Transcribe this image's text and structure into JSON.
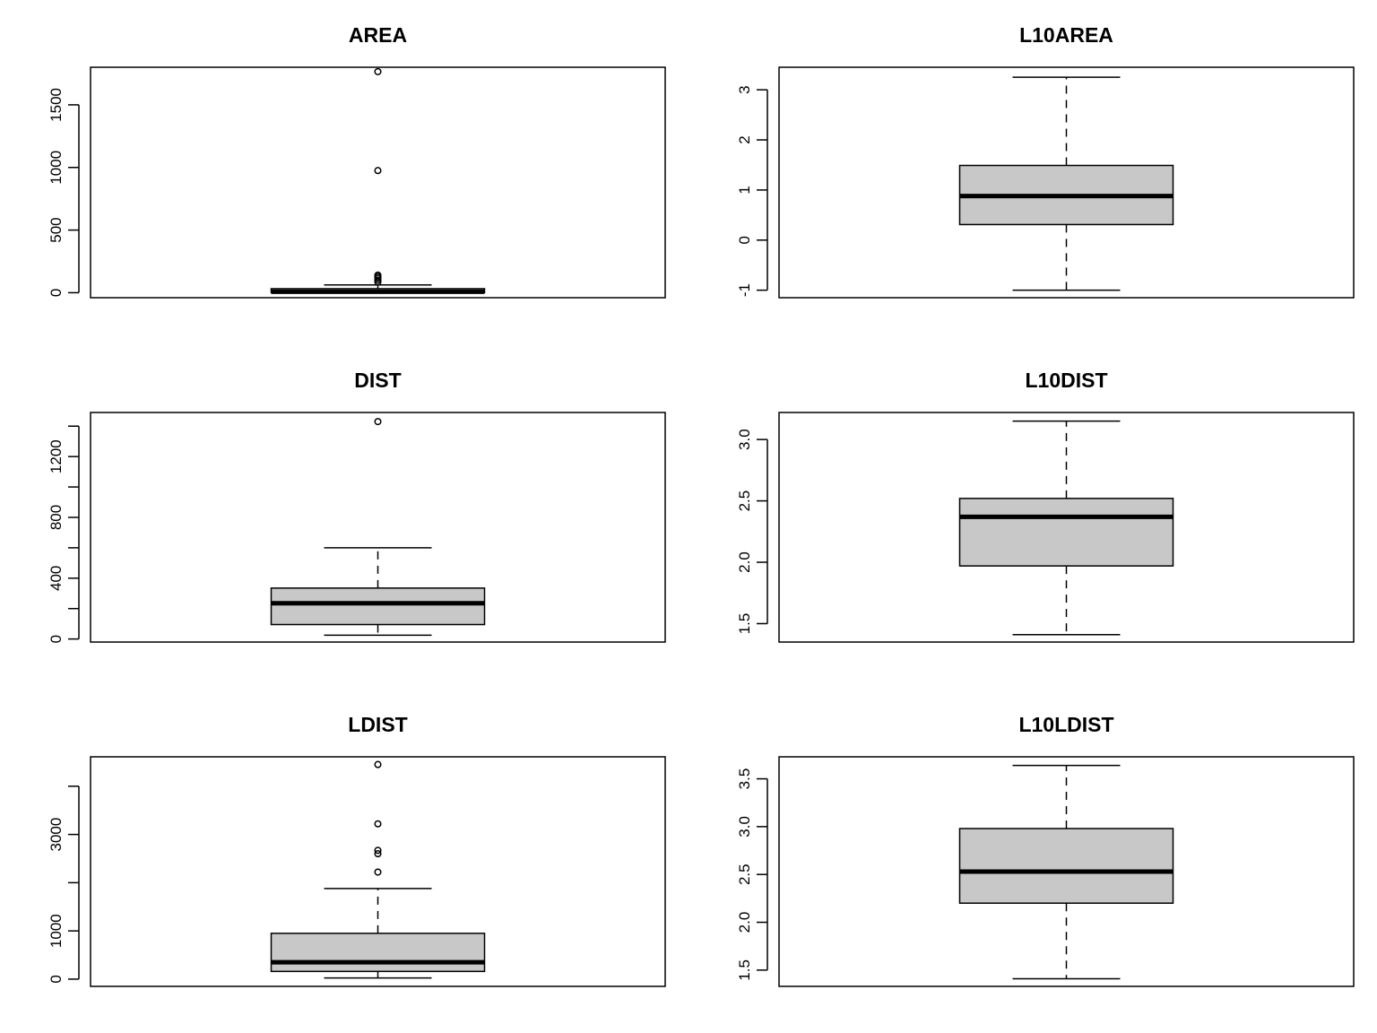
{
  "chart_data": [
    {
      "type": "box",
      "title": "AREA",
      "ylim": [
        -40,
        1800
      ],
      "yticks": [
        0,
        500,
        1000,
        1500
      ],
      "ytick_labels": [
        "0",
        "500",
        "1000",
        "1500"
      ],
      "box": {
        "whisker_low": 0.1,
        "q1": 2.2,
        "median": 7.4,
        "q3": 32,
        "whisker_high": 62
      },
      "outliers": [
        85,
        100,
        115,
        128,
        140,
        975,
        1765
      ],
      "fill_color": "#c8c8c8"
    },
    {
      "type": "box",
      "title": "L10AREA",
      "ylim": [
        -1.15,
        3.45
      ],
      "yticks": [
        -1,
        0,
        1,
        2,
        3
      ],
      "ytick_labels": [
        "-1",
        "0",
        "1",
        "2",
        "3"
      ],
      "box": {
        "whisker_low": -1.0,
        "q1": 0.31,
        "median": 0.88,
        "q3": 1.49,
        "whisker_high": 3.25
      },
      "outliers": [],
      "fill_color": "#c8c8c8"
    },
    {
      "type": "box",
      "title": "DIST",
      "ylim": [
        -20,
        1490
      ],
      "yticks": [
        0,
        200,
        400,
        600,
        800,
        1000,
        1200,
        1400
      ],
      "ytick_labels": [
        "0",
        "",
        "400",
        "",
        "800",
        "",
        "1200",
        ""
      ],
      "box": {
        "whisker_low": 25,
        "q1": 95,
        "median": 235,
        "q3": 335,
        "whisker_high": 600
      },
      "outliers": [
        1430
      ],
      "fill_color": "#c8c8c8"
    },
    {
      "type": "box",
      "title": "L10DIST",
      "ylim": [
        1.35,
        3.22
      ],
      "yticks": [
        1.5,
        2.0,
        2.5,
        3.0
      ],
      "ytick_labels": [
        "1.5",
        "2.0",
        "2.5",
        "3.0"
      ],
      "box": {
        "whisker_low": 1.41,
        "q1": 1.97,
        "median": 2.37,
        "q3": 2.52,
        "whisker_high": 3.15
      },
      "outliers": [],
      "fill_color": "#c8c8c8"
    },
    {
      "type": "box",
      "title": "LDIST",
      "ylim": [
        -150,
        4610
      ],
      "yticks": [
        0,
        1000,
        2000,
        3000,
        4000
      ],
      "ytick_labels": [
        "0",
        "1000",
        "",
        "3000",
        ""
      ],
      "box": {
        "whisker_low": 25,
        "q1": 160,
        "median": 350,
        "q3": 950,
        "whisker_high": 1880
      },
      "outliers": [
        2220,
        2600,
        2670,
        3220,
        4450
      ],
      "fill_color": "#c8c8c8"
    },
    {
      "type": "box",
      "title": "L10LDIST",
      "ylim": [
        1.33,
        3.73
      ],
      "yticks": [
        1.5,
        2.0,
        2.5,
        3.0,
        3.5
      ],
      "ytick_labels": [
        "1.5",
        "2.0",
        "2.5",
        "3.0",
        "3.5"
      ],
      "box": {
        "whisker_low": 1.41,
        "q1": 2.2,
        "median": 2.53,
        "q3": 2.98,
        "whisker_high": 3.64
      },
      "outliers": [],
      "fill_color": "#c8c8c8"
    }
  ]
}
